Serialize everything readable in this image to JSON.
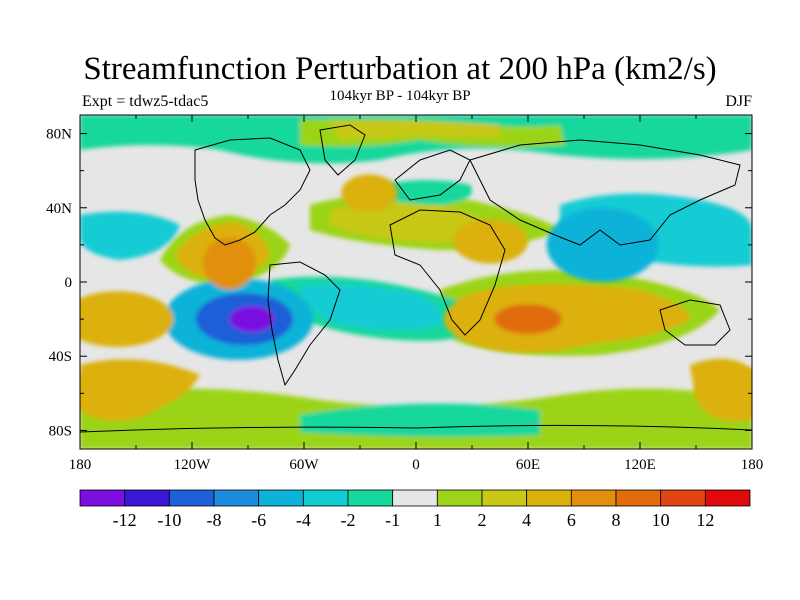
{
  "figure": {
    "title": "Streamfunction Perturbation at 200 hPa (km2/s)",
    "subtitle": "104kyr BP - 104kyr BP",
    "left_label": "Expt = tdwz5-tdac5",
    "right_label": "DJF"
  },
  "map": {
    "projection": "cylindrical equidistant",
    "lon_range": [
      -180,
      180
    ],
    "lat_range": [
      -90,
      90
    ],
    "x_ticks": [
      "180",
      "120W",
      "60W",
      "0",
      "60E",
      "120E",
      "180"
    ],
    "y_ticks": [
      "80N",
      "40N",
      "0",
      "40S",
      "80S"
    ]
  },
  "colorbar": {
    "colors": [
      "#7a0fe0",
      "#3a17d8",
      "#1f5fd8",
      "#1d8ce0",
      "#0eb2d8",
      "#12ccd4",
      "#16d79c",
      "#e6e6e6",
      "#9bd418",
      "#c8c816",
      "#dcb00c",
      "#e0900c",
      "#e06c0c",
      "#e04412",
      "#e00a0a"
    ],
    "labels": [
      "-12",
      "-10",
      "-8",
      "-6",
      "-4",
      "-2",
      "-1",
      "1",
      "2",
      "4",
      "6",
      "8",
      "10",
      "12"
    ]
  },
  "features": [
    {
      "label": "",
      "lon": -95,
      "lat": -20,
      "rx": 40,
      "ry": 22,
      "level": 4
    },
    {
      "label": "",
      "lon": -92,
      "lat": -20,
      "rx": 26,
      "ry": 14,
      "level": 2
    },
    {
      "label": "",
      "lon": -88,
      "lat": -20,
      "rx": 12,
      "ry": 7,
      "level": 0
    },
    {
      "label": "",
      "lon": -100,
      "lat": 10,
      "rx": 14,
      "ry": 14,
      "level": 11
    },
    {
      "label": "",
      "lon": 60,
      "lat": -20,
      "rx": 45,
      "ry": 18,
      "level": 10
    },
    {
      "label": "",
      "lon": 60,
      "lat": -20,
      "rx": 18,
      "ry": 8,
      "level": 12
    },
    {
      "label": "",
      "lon": 100,
      "lat": 20,
      "rx": 30,
      "ry": 20,
      "level": 4
    },
    {
      "label": "",
      "lon": -160,
      "lat": -20,
      "rx": 30,
      "ry": 15,
      "level": 10
    },
    {
      "label": "",
      "lon": -160,
      "lat": -60,
      "rx": 25,
      "ry": 15,
      "level": 10
    },
    {
      "label": "",
      "lon": 170,
      "lat": -60,
      "rx": 20,
      "ry": 15,
      "level": 10
    },
    {
      "label": "",
      "lon": 40,
      "lat": 22,
      "rx": 20,
      "ry": 12,
      "level": 10
    },
    {
      "label": "",
      "lon": -25,
      "lat": 48,
      "rx": 15,
      "ry": 10,
      "level": 10
    }
  ]
}
